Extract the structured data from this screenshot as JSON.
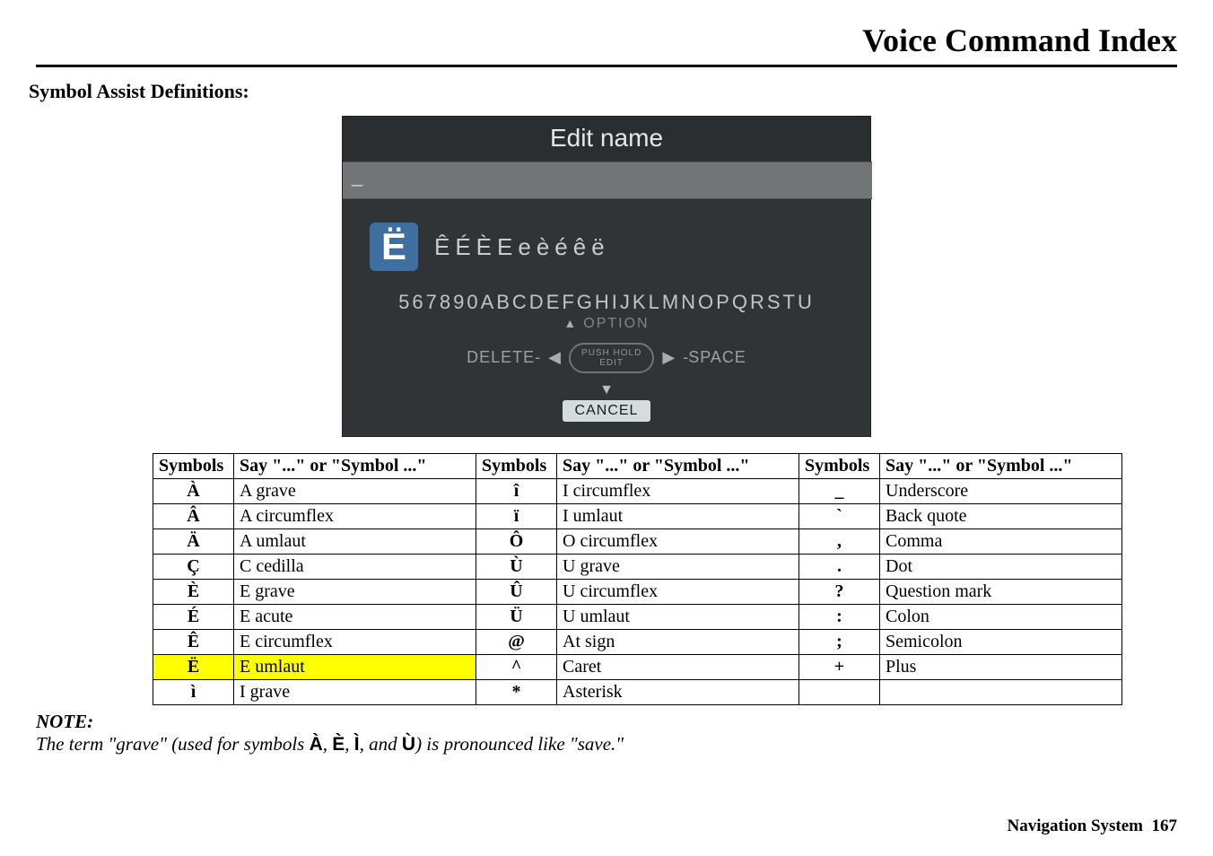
{
  "page": {
    "title": "Voice Command Index",
    "section_heading": "Symbol Assist Definitions:"
  },
  "edit_screen": {
    "title": "Edit name",
    "input_value": "_",
    "big_letter": "Ë",
    "alt_chars": "ÊÉÈEeèéêë",
    "alpha_row": "567890ABCDEFGHIJKLMNOPQRSTU",
    "option_label": "OPTION",
    "delete_label": "DELETE",
    "pushhold_line1": "PUSH HOLD",
    "pushhold_line2": "EDIT",
    "space_label": "SPACE",
    "cancel_label": "CANCEL"
  },
  "table": {
    "headers": {
      "symbols": "Symbols",
      "say": "Say \"...\" or \"Symbol ...\""
    },
    "col1": [
      {
        "sym": "À",
        "say": "A grave",
        "hl": false
      },
      {
        "sym": "Â",
        "say": "A circumflex",
        "hl": false
      },
      {
        "sym": "Ä",
        "say": "A umlaut",
        "hl": false
      },
      {
        "sym": "Ç",
        "say": "C cedilla",
        "hl": false
      },
      {
        "sym": "È",
        "say": "E grave",
        "hl": false
      },
      {
        "sym": "É",
        "say": "E acute",
        "hl": false
      },
      {
        "sym": "Ê",
        "say": "E circumflex",
        "hl": false
      },
      {
        "sym": "Ë",
        "say": "E umlaut",
        "hl": true
      },
      {
        "sym": "ì",
        "say": "I grave",
        "hl": false
      }
    ],
    "col2": [
      {
        "sym": "î",
        "say": "I circumflex"
      },
      {
        "sym": "ï",
        "say": "I umlaut"
      },
      {
        "sym": "Ô",
        "say": "O circumflex"
      },
      {
        "sym": "Ù",
        "say": "U grave"
      },
      {
        "sym": "Û",
        "say": "U circumflex"
      },
      {
        "sym": "Ü",
        "say": "U umlaut"
      },
      {
        "sym": "@",
        "say": "At sign"
      },
      {
        "sym": "^",
        "say": "Caret"
      },
      {
        "sym": "*",
        "say": "Asterisk"
      }
    ],
    "col3": [
      {
        "sym": "_",
        "say": "Underscore"
      },
      {
        "sym": "`",
        "say": "Back quote"
      },
      {
        "sym": ",",
        "say": "Comma"
      },
      {
        "sym": ".",
        "say": "Dot"
      },
      {
        "sym": "?",
        "say": "Question mark"
      },
      {
        "sym": ":",
        "say": "Colon"
      },
      {
        "sym": ";",
        "say": "Semicolon"
      },
      {
        "sym": "+",
        "say": "Plus"
      },
      {
        "sym": "",
        "say": ""
      }
    ]
  },
  "note": {
    "head": "NOTE:",
    "prefix": "The term \"grave\" (used for symbols ",
    "s1": "À",
    "s2": "È",
    "s3": "Ì",
    "s4": "Ù",
    "sep": ", ",
    "and": ", and ",
    "suffix": ") is pronounced like \"save.\""
  },
  "footer": {
    "label": "Navigation System",
    "page_no": "167"
  }
}
